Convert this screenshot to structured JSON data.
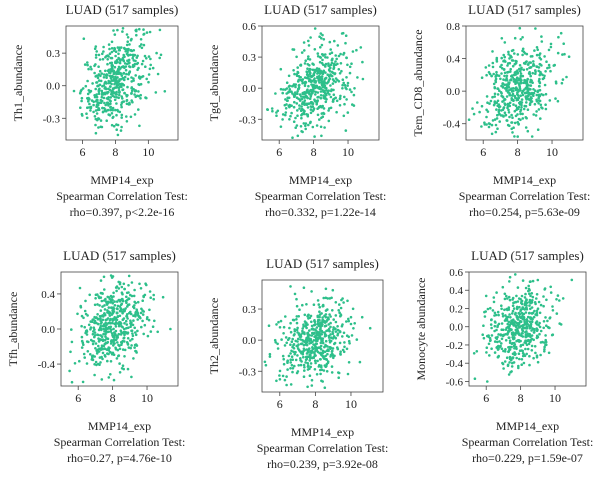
{
  "chart_data": [
    {
      "type": "scatter",
      "title": "LUAD (517 samples)",
      "xlabel": "MMP14_exp",
      "ylabel": "Th1_abundance",
      "stat_label": "Spearman Correlation Test:",
      "stat_value": "rho=0.397, p<2.2e-16",
      "xlim": [
        5.0,
        11.8
      ],
      "ylim": [
        -0.5,
        0.55
      ],
      "xticks": [
        6,
        8,
        10
      ],
      "yticks": [
        -0.3,
        0.0,
        0.3
      ],
      "ytick_labels": [
        "-0.3",
        "0.0",
        "0.3"
      ],
      "point_color": "#2dbf8a",
      "n_points": 517,
      "x_center": 8.0,
      "x_spread": 1.0,
      "y_center": 0.05,
      "y_spread": 0.22,
      "rho": 0.397
    },
    {
      "type": "scatter",
      "title": "LUAD (517 samples)",
      "xlabel": "MMP14_exp",
      "ylabel": "Tgd_abundance",
      "stat_label": "Spearman Correlation Test:",
      "stat_value": "rho=0.332, p=1.22e-14",
      "xlim": [
        5.0,
        11.8
      ],
      "ylim": [
        -0.5,
        0.6
      ],
      "xticks": [
        6,
        8,
        10
      ],
      "yticks": [
        -0.3,
        0.0,
        0.3,
        0.6
      ],
      "ytick_labels": [
        "-0.3",
        "0.0",
        "0.3",
        "0.6"
      ],
      "point_color": "#2dbf8a",
      "n_points": 517,
      "x_center": 8.1,
      "x_spread": 1.0,
      "y_center": 0.02,
      "y_spread": 0.2,
      "rho": 0.332
    },
    {
      "type": "scatter",
      "title": "LUAD (517 samples)",
      "xlabel": "MMP14_exp",
      "ylabel": "Tem_CD8_abundance",
      "stat_label": "Spearman Correlation Test:",
      "stat_value": "rho=0.254, p=5.63e-09",
      "xlim": [
        5.0,
        11.8
      ],
      "ylim": [
        -0.6,
        0.8
      ],
      "xticks": [
        6,
        8,
        10
      ],
      "yticks": [
        -0.4,
        0.0,
        0.4,
        0.8
      ],
      "ytick_labels": [
        "-0.4",
        "0.0",
        "0.4",
        "0.8"
      ],
      "point_color": "#2dbf8a",
      "n_points": 517,
      "x_center": 8.0,
      "x_spread": 1.0,
      "y_center": 0.05,
      "y_spread": 0.28,
      "rho": 0.254
    },
    {
      "type": "scatter",
      "title": "LUAD (517 samples)",
      "xlabel": "MMP14_exp",
      "ylabel": "Tfh_abundance",
      "stat_label": "Spearman Correlation Test:",
      "stat_value": "rho=0.27, p=4.76e-10",
      "xlim": [
        5.0,
        11.8
      ],
      "ylim": [
        -0.65,
        0.65
      ],
      "xticks": [
        6,
        8,
        10
      ],
      "yticks": [
        -0.4,
        0.0,
        0.4
      ],
      "ytick_labels": [
        "-0.4",
        "0.0",
        "0.4"
      ],
      "point_color": "#2dbf8a",
      "n_points": 517,
      "x_center": 8.0,
      "x_spread": 1.0,
      "y_center": 0.02,
      "y_spread": 0.26,
      "rho": 0.27
    },
    {
      "type": "scatter",
      "title": "LUAD (517 samples)",
      "xlabel": "MMP14_exp",
      "ylabel": "Th2_abundance",
      "stat_label": "Spearman Correlation Test:",
      "stat_value": "rho=0.239, p=3.92e-08",
      "xlim": [
        5.0,
        11.8
      ],
      "ylim": [
        -0.5,
        0.58
      ],
      "xticks": [
        6,
        8,
        10
      ],
      "yticks": [
        -0.3,
        0.0,
        0.3
      ],
      "ytick_labels": [
        "-0.3",
        "0.0",
        "0.3"
      ],
      "point_color": "#2dbf8a",
      "n_points": 517,
      "x_center": 8.0,
      "x_spread": 1.0,
      "y_center": 0.0,
      "y_spread": 0.2,
      "rho": 0.239
    },
    {
      "type": "scatter",
      "title": "LUAD (517 samples)",
      "xlabel": "MMP14_exp",
      "ylabel": "Monocyte abundance",
      "stat_label": "Spearman Correlation Test:",
      "stat_value": "rho=0.229, p=1.59e-07",
      "xlim": [
        5.0,
        11.8
      ],
      "ylim": [
        -0.65,
        0.6
      ],
      "xticks": [
        6,
        8,
        10
      ],
      "yticks": [
        -0.6,
        -0.4,
        -0.2,
        0.0,
        0.2,
        0.4,
        0.6
      ],
      "ytick_labels": [
        "-0.6",
        "-0.4",
        "-0.2",
        "0.0",
        "0.2",
        "0.4",
        "0.6"
      ],
      "point_color": "#2dbf8a",
      "n_points": 517,
      "x_center": 8.0,
      "x_spread": 1.0,
      "y_center": 0.0,
      "y_spread": 0.24,
      "rho": 0.229
    }
  ]
}
